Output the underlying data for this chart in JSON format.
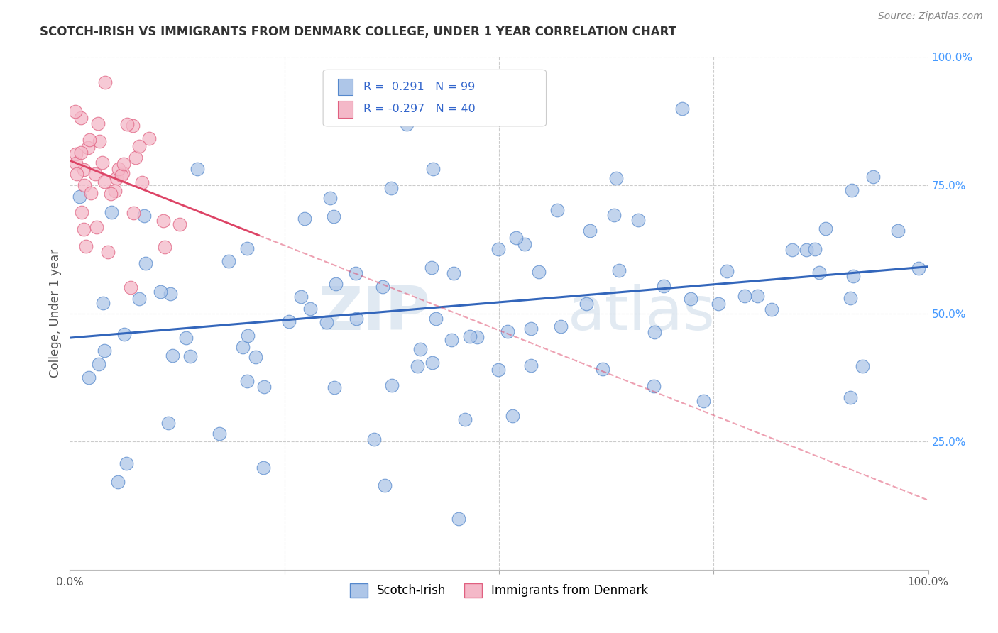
{
  "title": "SCOTCH-IRISH VS IMMIGRANTS FROM DENMARK COLLEGE, UNDER 1 YEAR CORRELATION CHART",
  "source": "Source: ZipAtlas.com",
  "ylabel": "College, Under 1 year",
  "xlim": [
    0,
    1.0
  ],
  "ylim": [
    0,
    1.0
  ],
  "blue_R": 0.291,
  "blue_N": 99,
  "pink_R": -0.297,
  "pink_N": 40,
  "blue_color": "#aec6e8",
  "blue_edge": "#5588cc",
  "pink_color": "#f4b8c8",
  "pink_edge": "#e06080",
  "blue_line_color": "#3366bb",
  "pink_line_color": "#dd4466",
  "watermark_zip": "ZIP",
  "watermark_atlas": "atlas",
  "grid_color": "#cccccc",
  "right_tick_color": "#4499ff",
  "title_color": "#333333",
  "source_color": "#888888",
  "ylabel_color": "#555555"
}
